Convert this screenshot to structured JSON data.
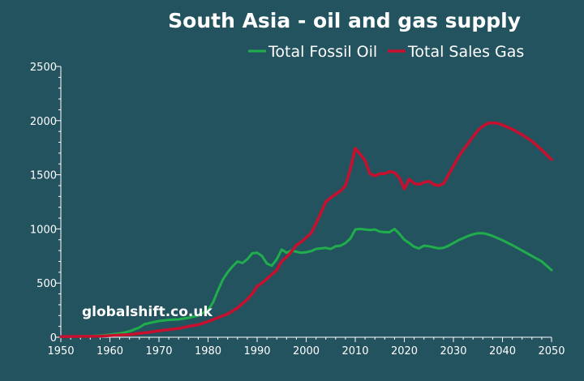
{
  "chart_data": {
    "type": "line",
    "title": "South Asia - oil and gas supply",
    "xlim": [
      1950,
      2050
    ],
    "ylim": [
      0,
      2500
    ],
    "x_ticks": [
      1950,
      1960,
      1970,
      1980,
      1990,
      2000,
      2010,
      2020,
      2030,
      2040,
      2050
    ],
    "y_ticks": [
      0,
      500,
      1000,
      1500,
      2000,
      2500
    ],
    "legend_position": "top-right",
    "grid": false,
    "watermark": "globalshift.co.uk",
    "series": [
      {
        "name": "Total Fossil Oil",
        "color": "#1fae4b",
        "points": [
          [
            1950,
            5
          ],
          [
            1955,
            10
          ],
          [
            1958,
            15
          ],
          [
            1960,
            25
          ],
          [
            1962,
            35
          ],
          [
            1964,
            55
          ],
          [
            1966,
            90
          ],
          [
            1967,
            120
          ],
          [
            1968,
            130
          ],
          [
            1970,
            150
          ],
          [
            1972,
            160
          ],
          [
            1974,
            165
          ],
          [
            1976,
            180
          ],
          [
            1978,
            200
          ],
          [
            1980,
            250
          ],
          [
            1981,
            320
          ],
          [
            1982,
            430
          ],
          [
            1983,
            530
          ],
          [
            1984,
            600
          ],
          [
            1985,
            655
          ],
          [
            1986,
            700
          ],
          [
            1987,
            685
          ],
          [
            1988,
            720
          ],
          [
            1989,
            775
          ],
          [
            1990,
            780
          ],
          [
            1991,
            750
          ],
          [
            1992,
            680
          ],
          [
            1993,
            660
          ],
          [
            1994,
            720
          ],
          [
            1995,
            810
          ],
          [
            1996,
            780
          ],
          [
            1997,
            800
          ],
          [
            1998,
            790
          ],
          [
            1999,
            780
          ],
          [
            2000,
            785
          ],
          [
            2001,
            795
          ],
          [
            2002,
            815
          ],
          [
            2003,
            820
          ],
          [
            2004,
            825
          ],
          [
            2005,
            815
          ],
          [
            2006,
            840
          ],
          [
            2007,
            845
          ],
          [
            2008,
            870
          ],
          [
            2009,
            910
          ],
          [
            2010,
            995
          ],
          [
            2011,
            1000
          ],
          [
            2012,
            995
          ],
          [
            2013,
            990
          ],
          [
            2014,
            995
          ],
          [
            2015,
            975
          ],
          [
            2016,
            970
          ],
          [
            2017,
            970
          ],
          [
            2018,
            1000
          ],
          [
            2019,
            955
          ],
          [
            2020,
            900
          ],
          [
            2021,
            870
          ],
          [
            2022,
            835
          ],
          [
            2023,
            820
          ],
          [
            2024,
            845
          ],
          [
            2025,
            840
          ],
          [
            2026,
            830
          ],
          [
            2027,
            820
          ],
          [
            2028,
            825
          ],
          [
            2029,
            845
          ],
          [
            2030,
            870
          ],
          [
            2031,
            895
          ],
          [
            2032,
            915
          ],
          [
            2033,
            935
          ],
          [
            2034,
            950
          ],
          [
            2035,
            960
          ],
          [
            2036,
            960
          ],
          [
            2037,
            950
          ],
          [
            2038,
            935
          ],
          [
            2039,
            915
          ],
          [
            2040,
            895
          ],
          [
            2042,
            850
          ],
          [
            2044,
            800
          ],
          [
            2046,
            750
          ],
          [
            2048,
            700
          ],
          [
            2050,
            620
          ]
        ]
      },
      {
        "name": "Total Sales Gas",
        "color": "#c8102e",
        "points": [
          [
            1950,
            5
          ],
          [
            1955,
            8
          ],
          [
            1958,
            10
          ],
          [
            1960,
            15
          ],
          [
            1962,
            20
          ],
          [
            1964,
            25
          ],
          [
            1966,
            35
          ],
          [
            1968,
            45
          ],
          [
            1970,
            60
          ],
          [
            1972,
            70
          ],
          [
            1974,
            80
          ],
          [
            1976,
            100
          ],
          [
            1978,
            115
          ],
          [
            1980,
            145
          ],
          [
            1982,
            180
          ],
          [
            1984,
            215
          ],
          [
            1986,
            270
          ],
          [
            1988,
            350
          ],
          [
            1989,
            400
          ],
          [
            1990,
            470
          ],
          [
            1991,
            500
          ],
          [
            1992,
            540
          ],
          [
            1993,
            580
          ],
          [
            1994,
            620
          ],
          [
            1995,
            700
          ],
          [
            1996,
            740
          ],
          [
            1997,
            790
          ],
          [
            1998,
            850
          ],
          [
            1999,
            880
          ],
          [
            2000,
            920
          ],
          [
            2001,
            960
          ],
          [
            2002,
            1050
          ],
          [
            2003,
            1150
          ],
          [
            2004,
            1250
          ],
          [
            2005,
            1290
          ],
          [
            2006,
            1320
          ],
          [
            2007,
            1350
          ],
          [
            2008,
            1400
          ],
          [
            2009,
            1550
          ],
          [
            2010,
            1745
          ],
          [
            2011,
            1690
          ],
          [
            2012,
            1630
          ],
          [
            2013,
            1510
          ],
          [
            2014,
            1490
          ],
          [
            2015,
            1510
          ],
          [
            2016,
            1510
          ],
          [
            2017,
            1530
          ],
          [
            2018,
            1520
          ],
          [
            2019,
            1470
          ],
          [
            2020,
            1370
          ],
          [
            2021,
            1460
          ],
          [
            2022,
            1420
          ],
          [
            2023,
            1410
          ],
          [
            2024,
            1430
          ],
          [
            2025,
            1440
          ],
          [
            2026,
            1410
          ],
          [
            2027,
            1400
          ],
          [
            2028,
            1420
          ],
          [
            2029,
            1500
          ],
          [
            2030,
            1580
          ],
          [
            2031,
            1660
          ],
          [
            2032,
            1730
          ],
          [
            2033,
            1790
          ],
          [
            2034,
            1850
          ],
          [
            2035,
            1910
          ],
          [
            2036,
            1950
          ],
          [
            2037,
            1975
          ],
          [
            2038,
            1980
          ],
          [
            2039,
            1975
          ],
          [
            2040,
            1960
          ],
          [
            2042,
            1920
          ],
          [
            2044,
            1870
          ],
          [
            2046,
            1810
          ],
          [
            2048,
            1730
          ],
          [
            2050,
            1640
          ]
        ]
      }
    ]
  }
}
